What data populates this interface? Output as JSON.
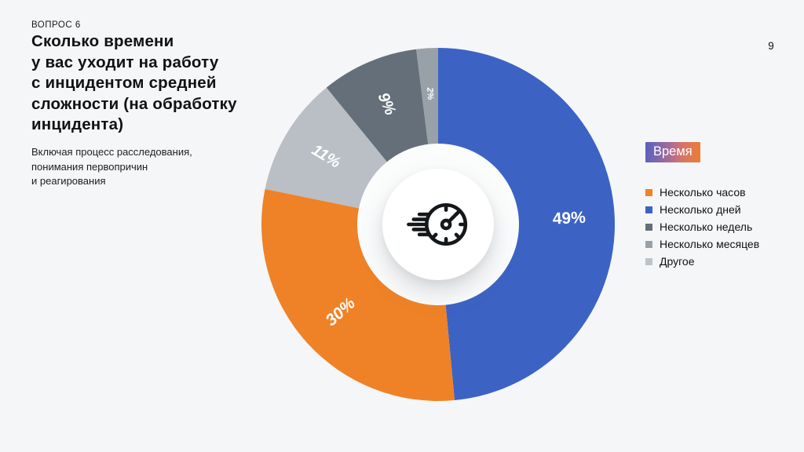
{
  "page": {
    "question_label": "ВОПРОС 6",
    "title": "Сколько времени\nу вас уходит на работу\nс инцидентом средней\nсложности (на обработку\nинцидента)",
    "subtitle": "Включая процесс расследования,\nпонимания первопричин\nи реагирования",
    "page_number": "9",
    "background_color": "#F5F6F7"
  },
  "legend": {
    "title": "Время",
    "badge_gradient": [
      "#5661C1",
      "#A96B95",
      "#D4746B",
      "#EC7E33"
    ],
    "items": [
      {
        "label": "Несколько часов",
        "color": "#EF8226"
      },
      {
        "label": "Несколько дней",
        "color": "#3C63C4"
      },
      {
        "label": "Несколько недель",
        "color": "#646F79"
      },
      {
        "label": "Несколько месяцев",
        "color": "#98A1A8"
      },
      {
        "label": "Другое",
        "color": "#BDC3C9"
      }
    ]
  },
  "chart_data": {
    "type": "pie",
    "subtype": "donut",
    "unit": "%",
    "title": "Сколько времени у вас уходит на работу с инцидентом средней сложности (на обработку инцидента)",
    "legend_title": "Время",
    "legend_position": "right",
    "start_angle_deg": 0,
    "clockwise": true,
    "inner_radius_ratio": 0.458,
    "label_radius_ratio": 0.742,
    "hole_color": "#FBFCFC",
    "center_icon": "speedometer",
    "icon_color": "#15181B",
    "segments_clockwise": [
      {
        "label": "Несколько дней",
        "value": 49,
        "display": "49%",
        "color": "#3C63C4",
        "label_size": 21,
        "label_italic": false
      },
      {
        "label": "Несколько часов",
        "value": 30,
        "display": "30%",
        "color": "#EF8226",
        "label_size": 21,
        "label_italic": true
      },
      {
        "label": "Другое",
        "value": 11,
        "display": "11%",
        "color": "#B9BFC5",
        "label_size": 20,
        "label_italic": true
      },
      {
        "label": "Несколько недель",
        "value": 9,
        "display": "9%",
        "color": "#646F79",
        "label_size": 20,
        "label_italic": true
      },
      {
        "label": "Несколько месяцев",
        "value": 2,
        "display": "2%",
        "color": "#98A1A8",
        "label_size": 11,
        "label_italic": true
      }
    ]
  }
}
